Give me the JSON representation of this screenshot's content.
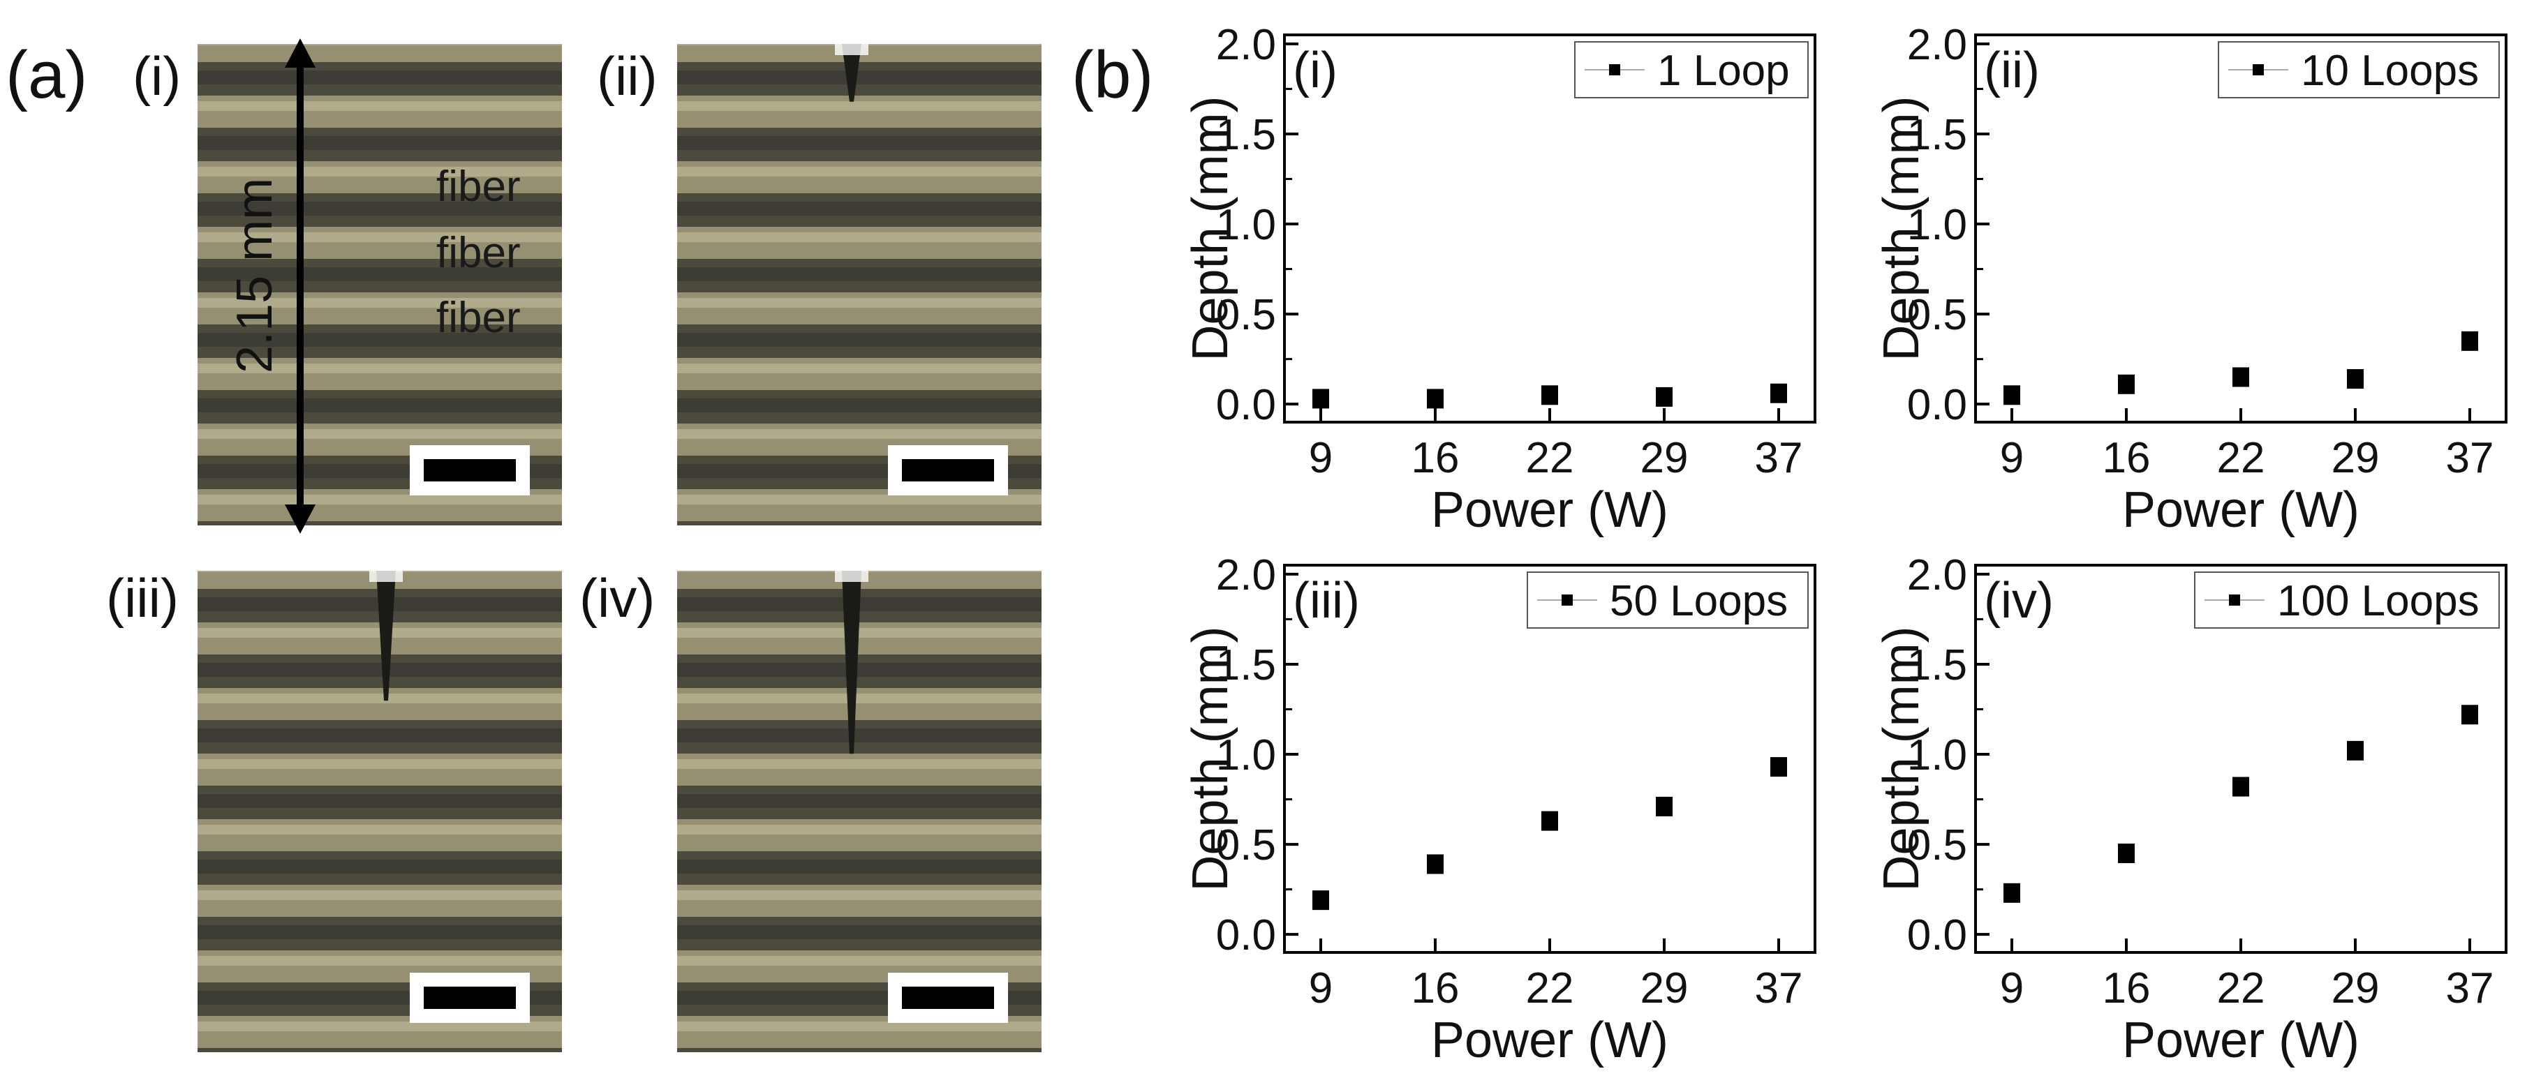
{
  "panel_a": {
    "label": "(a)",
    "subpanels": [
      {
        "label": "(i)",
        "notch_depth": 0
      },
      {
        "label": "(ii)",
        "notch_depth": 0.12
      },
      {
        "label": "(iii)",
        "notch_depth": 0.27
      },
      {
        "label": "(iv)",
        "notch_depth": 0.38
      }
    ],
    "dimension_label": "2.15 mm",
    "fiber_labels": [
      "fiber",
      "fiber",
      "fiber"
    ]
  },
  "panel_b": {
    "label": "(b)"
  },
  "chart_data": [
    {
      "type": "scatter",
      "panel": "(i)",
      "legend": "1 Loop",
      "xlabel": "Power (W)",
      "ylabel": "Depth (mm)",
      "categories": [
        "9",
        "16",
        "22",
        "29",
        "37"
      ],
      "values": [
        0.03,
        0.03,
        0.05,
        0.04,
        0.06
      ],
      "ylim": [
        -0.1,
        2.05
      ],
      "yticks": [
        "0.0",
        "0.5",
        "1.0",
        "1.5",
        "2.0"
      ]
    },
    {
      "type": "scatter",
      "panel": "(ii)",
      "legend": "10 Loops",
      "xlabel": "Power (W)",
      "ylabel": "Depth (mm)",
      "categories": [
        "9",
        "16",
        "22",
        "29",
        "37"
      ],
      "values": [
        0.05,
        0.11,
        0.15,
        0.14,
        0.35
      ],
      "ylim": [
        -0.1,
        2.05
      ],
      "yticks": [
        "0.0",
        "0.5",
        "1.0",
        "1.5",
        "2.0"
      ]
    },
    {
      "type": "scatter",
      "panel": "(iii)",
      "legend": "50 Loops",
      "xlabel": "Power (W)",
      "ylabel": "Depth (mm)",
      "categories": [
        "9",
        "16",
        "22",
        "29",
        "37"
      ],
      "values": [
        0.19,
        0.39,
        0.63,
        0.71,
        0.93
      ],
      "ylim": [
        -0.1,
        2.05
      ],
      "yticks": [
        "0.0",
        "0.5",
        "1.0",
        "1.5",
        "2.0"
      ]
    },
    {
      "type": "scatter",
      "panel": "(iv)",
      "legend": "100 Loops",
      "xlabel": "Power (W)",
      "ylabel": "Depth (mm)",
      "categories": [
        "9",
        "16",
        "22",
        "29",
        "37"
      ],
      "values": [
        0.23,
        0.45,
        0.82,
        1.02,
        1.22
      ],
      "ylim": [
        -0.1,
        2.05
      ],
      "yticks": [
        "0.0",
        "0.5",
        "1.0",
        "1.5",
        "2.0"
      ]
    }
  ]
}
